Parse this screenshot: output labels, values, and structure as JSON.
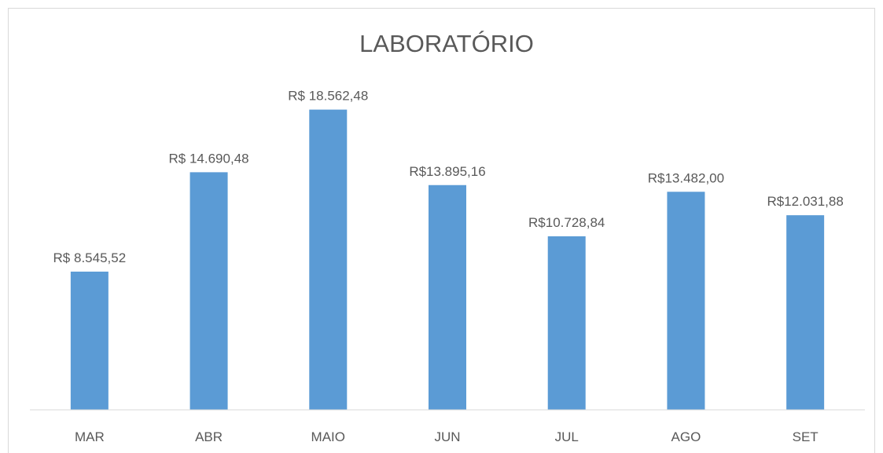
{
  "chart_data": {
    "type": "bar",
    "title": "LABORATÓRIO",
    "categories": [
      "MAR",
      "ABR",
      "MAIO",
      "JUN",
      "JUL",
      "AGO",
      "SET"
    ],
    "values": [
      8545.52,
      14690.48,
      18562.48,
      13895.16,
      10728.84,
      13482.0,
      12031.88
    ],
    "value_labels": [
      "R$ 8.545,52",
      "R$ 14.690,48",
      "R$ 18.562,48",
      "R$13.895,16",
      "R$10.728,84",
      "R$13.482,00",
      "R$12.031,88"
    ],
    "color": "#5b9bd5",
    "ylim": [
      0,
      20000
    ]
  }
}
